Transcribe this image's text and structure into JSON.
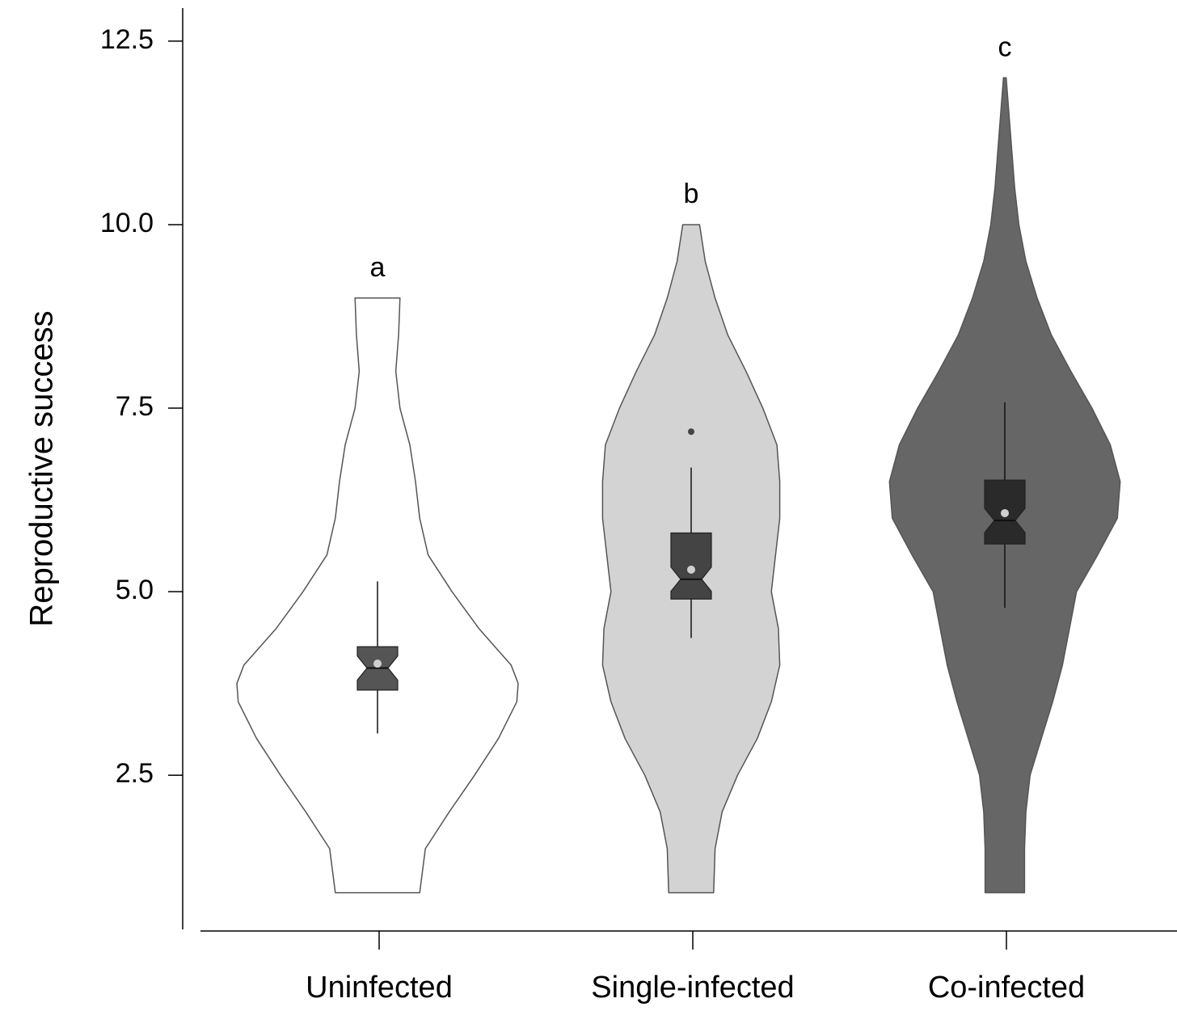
{
  "chart_data": {
    "type": "violin",
    "y_label": "Reproductive success",
    "categories": [
      "Uninfected",
      "Single-infected",
      "Co-infected"
    ],
    "annotations": [
      "a",
      "b",
      "c"
    ],
    "ylim": [
      0.4,
      12.95
    ],
    "yticks": [
      {
        "value": 2.5,
        "label": "2.5"
      },
      {
        "value": 5,
        "label": "5.0"
      },
      {
        "value": 7.5,
        "label": "7.5"
      },
      {
        "value": 10,
        "label": "10.0"
      },
      {
        "value": 12.5,
        "label": "12.5"
      }
    ],
    "violins": [
      {
        "fill": "#ffffff",
        "box_color": "#555555",
        "y": [
          0.9,
          1.5,
          2.0,
          2.5,
          3.0,
          3.5,
          3.75,
          4.0,
          4.5,
          5.0,
          5.5,
          6.0,
          6.5,
          7.0,
          7.5,
          8.0,
          8.5,
          9.0
        ],
        "density": [
          0.3,
          0.34,
          0.51,
          0.69,
          0.86,
          0.99,
          1.0,
          0.95,
          0.72,
          0.53,
          0.36,
          0.3,
          0.27,
          0.23,
          0.16,
          0.13,
          0.15,
          0.16
        ],
        "whisker_low": 3.07,
        "q1": 3.66,
        "median": 3.96,
        "q3": 4.25,
        "whisker_high": 5.14,
        "mean": 4.02,
        "outliers": []
      },
      {
        "fill": "#d3d3d3",
        "box_color": "#444444",
        "y": [
          0.9,
          1.5,
          2.0,
          2.5,
          3.0,
          3.5,
          4.0,
          4.5,
          5.0,
          5.5,
          6.0,
          6.5,
          7.0,
          7.5,
          8.0,
          8.5,
          9.0,
          9.5,
          10.0
        ],
        "density": [
          0.16,
          0.17,
          0.22,
          0.33,
          0.47,
          0.57,
          0.63,
          0.62,
          0.57,
          0.6,
          0.63,
          0.63,
          0.61,
          0.51,
          0.39,
          0.26,
          0.17,
          0.1,
          0.06
        ],
        "whisker_low": 4.37,
        "q1": 4.9,
        "median": 5.17,
        "q3": 5.8,
        "whisker_high": 6.69,
        "mean": 5.3,
        "outliers": [
          7.18
        ]
      },
      {
        "fill": "#666666",
        "box_color": "#2a2a2a",
        "y": [
          0.9,
          1.5,
          2.0,
          2.5,
          3.0,
          3.5,
          4.0,
          4.5,
          5.0,
          5.5,
          6.0,
          6.5,
          7.0,
          7.5,
          8.0,
          8.5,
          9.0,
          9.5,
          10.0,
          10.5,
          11.0,
          11.5,
          12.0
        ],
        "density": [
          0.14,
          0.14,
          0.15,
          0.18,
          0.26,
          0.34,
          0.41,
          0.46,
          0.51,
          0.66,
          0.8,
          0.82,
          0.75,
          0.62,
          0.47,
          0.33,
          0.23,
          0.15,
          0.1,
          0.07,
          0.05,
          0.03,
          0.01
        ],
        "whisker_low": 4.78,
        "q1": 5.65,
        "median": 5.97,
        "q3": 6.52,
        "whisker_high": 7.58,
        "mean": 6.07,
        "outliers": []
      }
    ]
  }
}
